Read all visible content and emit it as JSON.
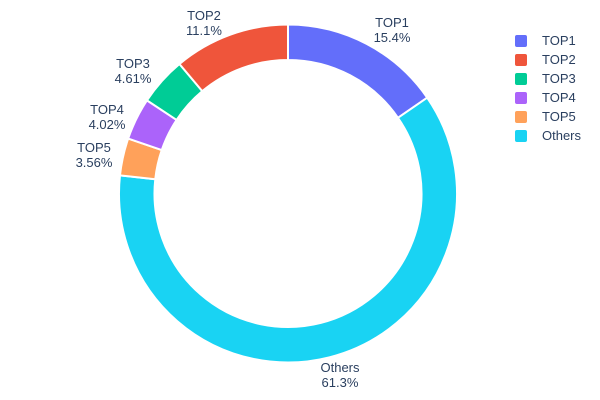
{
  "chart_data": {
    "type": "pie",
    "subtype": "donut",
    "title": "",
    "hole_ratio": 0.79,
    "categories": [
      "TOP1",
      "TOP2",
      "TOP3",
      "TOP4",
      "TOP5",
      "Others"
    ],
    "values_percent": [
      15.4,
      11.1,
      4.61,
      4.02,
      3.56,
      61.3
    ],
    "colors": [
      "#636efa",
      "#ef553b",
      "#00cc96",
      "#ab63fa",
      "#ffa15a",
      "#19d3f3"
    ],
    "clockwise_order_from_top": [
      "TOP1",
      "Others",
      "TOP5",
      "TOP4",
      "TOP3",
      "TOP2"
    ],
    "slice_outline_color": "#ffffff",
    "labels": [
      {
        "name": "TOP1",
        "pct": "15.4%"
      },
      {
        "name": "TOP2",
        "pct": "11.1%"
      },
      {
        "name": "TOP3",
        "pct": "4.61%"
      },
      {
        "name": "TOP4",
        "pct": "4.02%"
      },
      {
        "name": "TOP5",
        "pct": "3.56%"
      },
      {
        "name": "Others",
        "pct": "61.3%"
      }
    ],
    "legend": {
      "position": "right",
      "entries": [
        "TOP1",
        "TOP2",
        "TOP3",
        "TOP4",
        "TOP5",
        "Others"
      ]
    },
    "text_color": "#2a3f5f",
    "background_color": "#ffffff"
  }
}
